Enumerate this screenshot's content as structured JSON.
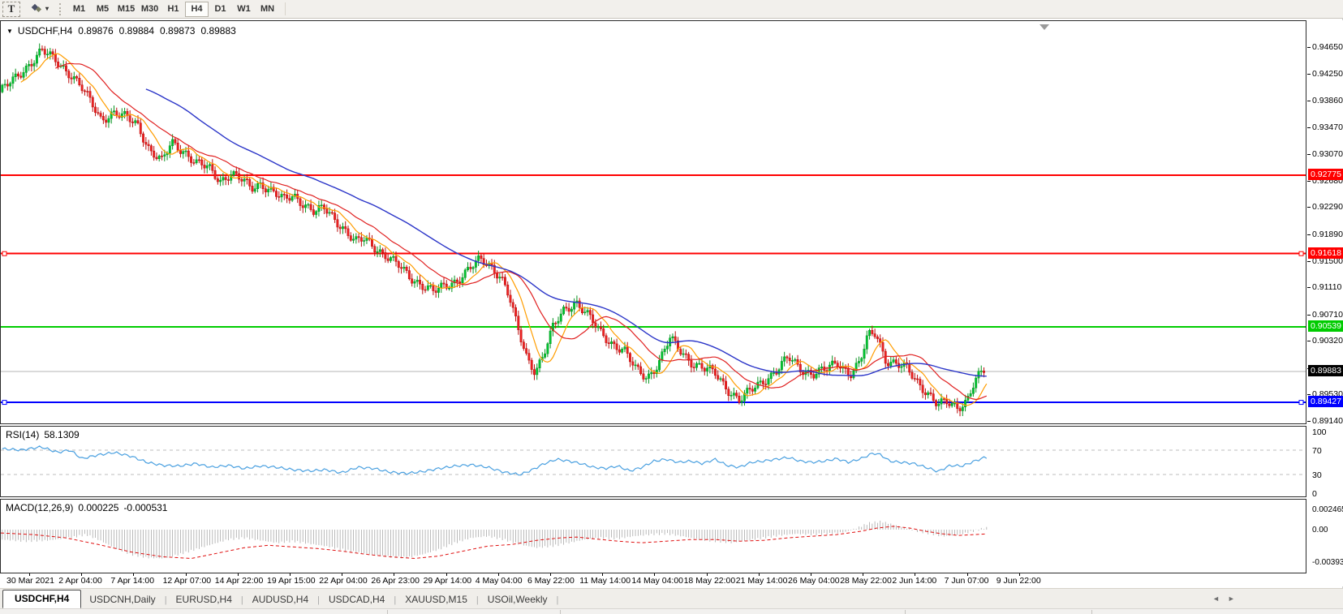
{
  "toolbar": {
    "text_tool_label": "T",
    "timeframes": [
      "M1",
      "M5",
      "M15",
      "M30",
      "H1",
      "H4",
      "D1",
      "W1",
      "MN"
    ],
    "active_timeframe": "H4"
  },
  "icons": {
    "caret_down": "▾",
    "title_triangle": "▼",
    "tab_scroll_left": "◄",
    "tab_scroll_right": "►"
  },
  "chart": {
    "symbol_tf": "USDCHF,H4",
    "quotes": {
      "open": "0.89876",
      "high": "0.89884",
      "low": "0.89873",
      "close": "0.89883"
    }
  },
  "indicators": {
    "rsi": {
      "name": "RSI(14)",
      "value": "58.1309",
      "scale": [
        "100",
        "70",
        "30",
        "0"
      ],
      "levels": [
        70,
        30
      ],
      "line_color": "#4aa0e0"
    },
    "macd": {
      "name": "MACD(12,26,9)",
      "main_value": "0.000225",
      "signal_value": "-0.000531",
      "scale": [
        "0.002465",
        "0.00",
        "-0.003939"
      ],
      "histogram_color": "#a8a8a8",
      "signal_color": "#e01010"
    }
  },
  "price_axis": {
    "ticks": [
      "0.94650",
      "0.94250",
      "0.93860",
      "0.93470",
      "0.93070",
      "0.92680",
      "0.92290",
      "0.91890",
      "0.91500",
      "0.91110",
      "0.90710",
      "0.90320",
      "0.89920",
      "0.89530",
      "0.89140"
    ],
    "line_labels": [
      {
        "text": "0.92775",
        "bg": "#ff0000",
        "fg": "#ffffff",
        "price": 0.92775
      },
      {
        "text": "0.91618",
        "bg": "#ff0000",
        "fg": "#ffffff",
        "price": 0.91618
      },
      {
        "text": "0.90539",
        "bg": "#00cc00",
        "fg": "#ffffff",
        "price": 0.90539
      },
      {
        "text": "0.89883",
        "bg": "#000000",
        "fg": "#ffffff",
        "price": 0.89883
      },
      {
        "text": "0.89427",
        "bg": "#0000ff",
        "fg": "#ffffff",
        "price": 0.89427
      }
    ]
  },
  "tabs": {
    "items": [
      {
        "label": "USDCHF,H4",
        "active": true
      },
      {
        "label": "USDCNH,Daily",
        "active": false
      },
      {
        "label": "EURUSD,H4",
        "active": false
      },
      {
        "label": "AUDUSD,H4",
        "active": false
      },
      {
        "label": "USDCAD,H4",
        "active": false
      },
      {
        "label": "XAUUSD,M15",
        "active": false
      },
      {
        "label": "USOil,Weekly",
        "active": false
      }
    ]
  },
  "chart_data": {
    "type": "candlestick",
    "symbol": "USDCHF",
    "timeframe": "H4",
    "candle_count": 370,
    "up_color": "#00c432",
    "down_color": "#ee2222",
    "up_stroke": "#0a9422",
    "down_stroke": "#bb0f0f",
    "moving_averages": [
      {
        "period": 8,
        "color": "#ff9d00"
      },
      {
        "period": 21,
        "color": "#e02020"
      },
      {
        "period": 55,
        "color": "#2b35c8"
      }
    ],
    "horizontal_levels": [
      {
        "price": 0.92775,
        "color": "#ff0000",
        "handles": false
      },
      {
        "price": 0.91618,
        "color": "#ff0000",
        "handles": true
      },
      {
        "price": 0.90539,
        "color": "#00cc00",
        "handles": false
      },
      {
        "price": 0.89427,
        "color": "#0000ff",
        "handles": true
      }
    ],
    "bid_line": {
      "price": 0.89883,
      "color": "#b4b4b4"
    },
    "y_axis": {
      "min": 0.8909,
      "max": 0.9507
    },
    "x_labels": [
      "30 Mar 2021",
      "2 Apr 04:00",
      "7 Apr 14:00",
      "12 Apr 07:00",
      "14 Apr 22:00",
      "19 Apr 15:00",
      "22 Apr 04:00",
      "26 Apr 23:00",
      "29 Apr 14:00",
      "4 May 04:00",
      "6 May 22:00",
      "11 May 14:00",
      "14 May 04:00",
      "18 May 22:00",
      "21 May 14:00",
      "26 May 04:00",
      "28 May 22:00",
      "2 Jun 14:00",
      "7 Jun 07:00",
      "9 Jun 22:00"
    ],
    "price_path": [
      [
        0,
        0.94
      ],
      [
        20,
        0.942
      ],
      [
        40,
        0.9446
      ],
      [
        52,
        0.9461
      ],
      [
        62,
        0.9452
      ],
      [
        75,
        0.944
      ],
      [
        90,
        0.9424
      ],
      [
        100,
        0.9408
      ],
      [
        112,
        0.9385
      ],
      [
        125,
        0.936
      ],
      [
        140,
        0.937
      ],
      [
        155,
        0.9362
      ],
      [
        170,
        0.9352
      ],
      [
        185,
        0.9315
      ],
      [
        200,
        0.9297
      ],
      [
        212,
        0.9325
      ],
      [
        228,
        0.9313
      ],
      [
        242,
        0.9295
      ],
      [
        258,
        0.9287
      ],
      [
        272,
        0.927
      ],
      [
        285,
        0.928
      ],
      [
        298,
        0.927
      ],
      [
        310,
        0.9258
      ],
      [
        322,
        0.9266
      ],
      [
        335,
        0.9254
      ],
      [
        350,
        0.924
      ],
      [
        362,
        0.9248
      ],
      [
        375,
        0.9236
      ],
      [
        388,
        0.9222
      ],
      [
        400,
        0.9228
      ],
      [
        412,
        0.9215
      ],
      [
        425,
        0.9198
      ],
      [
        438,
        0.9178
      ],
      [
        450,
        0.9183
      ],
      [
        465,
        0.917
      ],
      [
        478,
        0.9157
      ],
      [
        492,
        0.9143
      ],
      [
        505,
        0.9128
      ],
      [
        520,
        0.9117
      ],
      [
        535,
        0.9105
      ],
      [
        548,
        0.9113
      ],
      [
        562,
        0.9122
      ],
      [
        578,
        0.9138
      ],
      [
        592,
        0.9152
      ],
      [
        605,
        0.9145
      ],
      [
        618,
        0.9128
      ],
      [
        628,
        0.9098
      ],
      [
        638,
        0.9052
      ],
      [
        650,
        0.9008
      ],
      [
        660,
        0.899
      ],
      [
        670,
        0.9012
      ],
      [
        682,
        0.9052
      ],
      [
        695,
        0.9078
      ],
      [
        710,
        0.9092
      ],
      [
        725,
        0.907
      ],
      [
        740,
        0.9046
      ],
      [
        755,
        0.903
      ],
      [
        770,
        0.9018
      ],
      [
        783,
        0.8992
      ],
      [
        798,
        0.898
      ],
      [
        812,
        0.9
      ],
      [
        826,
        0.9036
      ],
      [
        840,
        0.9018
      ],
      [
        855,
        0.9
      ],
      [
        868,
        0.8992
      ],
      [
        882,
        0.8985
      ],
      [
        898,
        0.8962
      ],
      [
        912,
        0.8945
      ],
      [
        928,
        0.8962
      ],
      [
        942,
        0.8976
      ],
      [
        958,
        0.899
      ],
      [
        972,
        0.9008
      ],
      [
        988,
        0.8992
      ],
      [
        1003,
        0.8985
      ],
      [
        1018,
        0.899
      ],
      [
        1033,
        0.9002
      ],
      [
        1048,
        0.8985
      ],
      [
        1060,
        0.9
      ],
      [
        1070,
        0.904
      ],
      [
        1080,
        0.9046
      ],
      [
        1092,
        0.9006
      ],
      [
        1105,
        0.8998
      ],
      [
        1118,
        0.8992
      ],
      [
        1130,
        0.8975
      ],
      [
        1143,
        0.8958
      ],
      [
        1156,
        0.8938
      ],
      [
        1168,
        0.8942
      ],
      [
        1180,
        0.8936
      ],
      [
        1192,
        0.8946
      ],
      [
        1202,
        0.8974
      ],
      [
        1213,
        0.89883
      ]
    ],
    "rsi_path": [
      [
        0,
        72
      ],
      [
        25,
        70
      ],
      [
        50,
        75
      ],
      [
        70,
        66
      ],
      [
        85,
        70
      ],
      [
        100,
        56
      ],
      [
        120,
        62
      ],
      [
        140,
        66
      ],
      [
        160,
        60
      ],
      [
        180,
        50
      ],
      [
        200,
        45
      ],
      [
        220,
        44
      ],
      [
        240,
        48
      ],
      [
        260,
        42
      ],
      [
        280,
        45
      ],
      [
        300,
        40
      ],
      [
        320,
        44
      ],
      [
        340,
        42
      ],
      [
        360,
        38
      ],
      [
        380,
        36
      ],
      [
        400,
        38
      ],
      [
        420,
        33
      ],
      [
        440,
        42
      ],
      [
        460,
        40
      ],
      [
        480,
        34
      ],
      [
        500,
        32
      ],
      [
        520,
        35
      ],
      [
        540,
        40
      ],
      [
        560,
        44
      ],
      [
        580,
        46
      ],
      [
        600,
        42
      ],
      [
        620,
        34
      ],
      [
        640,
        30
      ],
      [
        655,
        38
      ],
      [
        670,
        48
      ],
      [
        685,
        55
      ],
      [
        700,
        52
      ],
      [
        715,
        48
      ],
      [
        730,
        42
      ],
      [
        745,
        40
      ],
      [
        760,
        44
      ],
      [
        775,
        36
      ],
      [
        790,
        42
      ],
      [
        805,
        52
      ],
      [
        820,
        55
      ],
      [
        835,
        50
      ],
      [
        850,
        52
      ],
      [
        865,
        48
      ],
      [
        880,
        55
      ],
      [
        895,
        45
      ],
      [
        910,
        42
      ],
      [
        925,
        50
      ],
      [
        940,
        52
      ],
      [
        955,
        55
      ],
      [
        970,
        58
      ],
      [
        985,
        52
      ],
      [
        1000,
        50
      ],
      [
        1015,
        52
      ],
      [
        1030,
        56
      ],
      [
        1045,
        50
      ],
      [
        1060,
        56
      ],
      [
        1075,
        65
      ],
      [
        1085,
        62
      ],
      [
        1095,
        52
      ],
      [
        1110,
        50
      ],
      [
        1125,
        48
      ],
      [
        1140,
        42
      ],
      [
        1155,
        35
      ],
      [
        1170,
        45
      ],
      [
        1185,
        44
      ],
      [
        1200,
        52
      ],
      [
        1213,
        58.13
      ]
    ],
    "macd_histogram_path": [
      [
        0,
        -0.0012
      ],
      [
        30,
        -0.0014
      ],
      [
        60,
        -0.0013
      ],
      [
        90,
        -0.0009
      ],
      [
        105,
        -0.0006
      ],
      [
        120,
        -0.0012
      ],
      [
        140,
        -0.0022
      ],
      [
        160,
        -0.003
      ],
      [
        180,
        -0.0034
      ],
      [
        200,
        -0.0035
      ],
      [
        220,
        -0.003
      ],
      [
        240,
        -0.0024
      ],
      [
        260,
        -0.0018
      ],
      [
        280,
        -0.0012
      ],
      [
        300,
        -0.001
      ],
      [
        320,
        -0.0013
      ],
      [
        340,
        -0.0016
      ],
      [
        360,
        -0.0014
      ],
      [
        380,
        -0.0017
      ],
      [
        400,
        -0.002
      ],
      [
        420,
        -0.0024
      ],
      [
        440,
        -0.0028
      ],
      [
        460,
        -0.0031
      ],
      [
        480,
        -0.0033
      ],
      [
        500,
        -0.0034
      ],
      [
        520,
        -0.003
      ],
      [
        540,
        -0.0024
      ],
      [
        560,
        -0.0016
      ],
      [
        580,
        -0.001
      ],
      [
        600,
        -0.0008
      ],
      [
        620,
        -0.0012
      ],
      [
        640,
        -0.0018
      ],
      [
        660,
        -0.0022
      ],
      [
        680,
        -0.002
      ],
      [
        700,
        -0.0016
      ],
      [
        720,
        -0.0012
      ],
      [
        740,
        -0.001
      ],
      [
        760,
        -0.0011
      ],
      [
        780,
        -0.0008
      ],
      [
        800,
        -0.0006
      ],
      [
        820,
        -0.0005
      ],
      [
        840,
        -0.0008
      ],
      [
        860,
        -0.0012
      ],
      [
        880,
        -0.0014
      ],
      [
        900,
        -0.0016
      ],
      [
        920,
        -0.0013
      ],
      [
        940,
        -0.001
      ],
      [
        960,
        -0.0007
      ],
      [
        980,
        -0.0005
      ],
      [
        1000,
        -0.0006
      ],
      [
        1020,
        -0.0005
      ],
      [
        1040,
        -0.0003
      ],
      [
        1055,
        0.0002
      ],
      [
        1070,
        0.0008
      ],
      [
        1085,
        0.001
      ],
      [
        1100,
        0.0006
      ],
      [
        1115,
        0.0002
      ],
      [
        1130,
        -0.0002
      ],
      [
        1145,
        -0.0005
      ],
      [
        1160,
        -0.0008
      ],
      [
        1175,
        -0.0007
      ],
      [
        1190,
        -0.0004
      ],
      [
        1205,
        0.0
      ],
      [
        1213,
        0.000225
      ]
    ],
    "macd_signal_path": [
      [
        0,
        -0.0004
      ],
      [
        40,
        -0.0006
      ],
      [
        80,
        -0.001
      ],
      [
        120,
        -0.0018
      ],
      [
        160,
        -0.0027
      ],
      [
        200,
        -0.0033
      ],
      [
        235,
        -0.0035
      ],
      [
        270,
        -0.0028
      ],
      [
        300,
        -0.0022
      ],
      [
        330,
        -0.0019
      ],
      [
        360,
        -0.0021
      ],
      [
        390,
        -0.0023
      ],
      [
        420,
        -0.0026
      ],
      [
        450,
        -0.003
      ],
      [
        480,
        -0.0033
      ],
      [
        510,
        -0.0035
      ],
      [
        540,
        -0.0032
      ],
      [
        570,
        -0.0026
      ],
      [
        600,
        -0.002
      ],
      [
        630,
        -0.0018
      ],
      [
        660,
        -0.0013
      ],
      [
        690,
        -0.001
      ],
      [
        710,
        -0.0009
      ],
      [
        730,
        -0.0011
      ],
      [
        760,
        -0.0014
      ],
      [
        790,
        -0.0016
      ],
      [
        820,
        -0.0014
      ],
      [
        850,
        -0.0012
      ],
      [
        880,
        -0.0012
      ],
      [
        910,
        -0.0014
      ],
      [
        940,
        -0.0013
      ],
      [
        970,
        -0.001
      ],
      [
        1000,
        -0.0008
      ],
      [
        1030,
        -0.0006
      ],
      [
        1060,
        -0.0002
      ],
      [
        1080,
        0.0002
      ],
      [
        1100,
        0.0004
      ],
      [
        1120,
        0.0002
      ],
      [
        1140,
        -0.0002
      ],
      [
        1160,
        -0.0005
      ],
      [
        1180,
        -0.0007
      ],
      [
        1200,
        -0.0006
      ],
      [
        1213,
        -0.00053
      ]
    ]
  }
}
